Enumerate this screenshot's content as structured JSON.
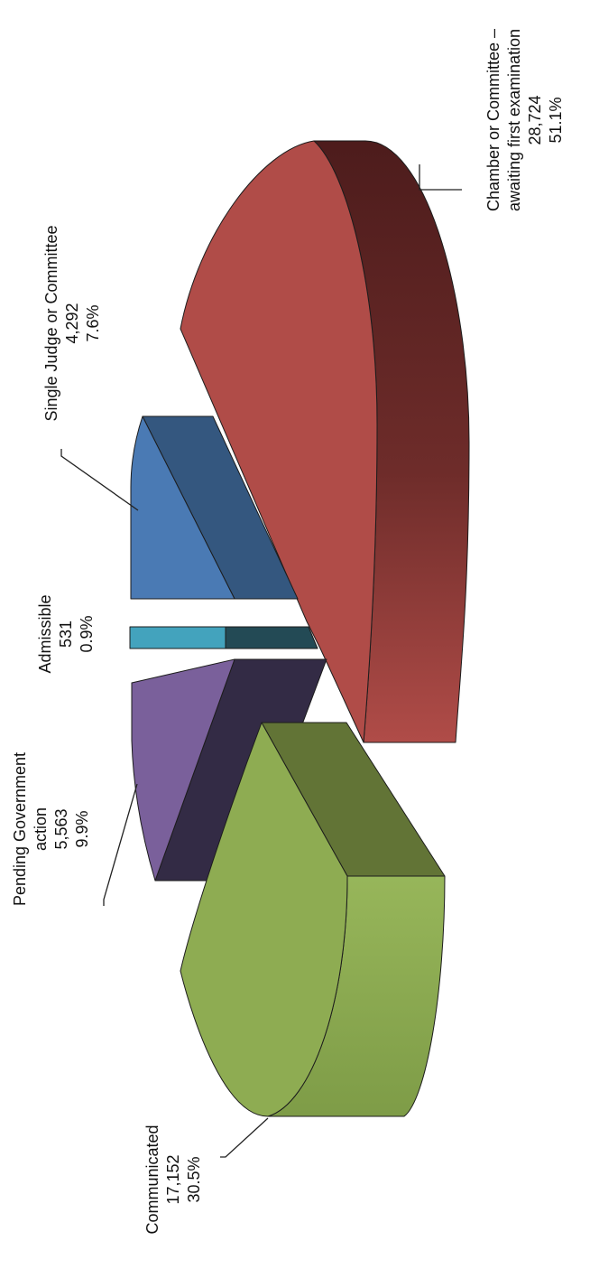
{
  "chart_data": {
    "type": "pie",
    "style": "3d-exploded",
    "orientation": "rotated-90",
    "title": "",
    "slices": [
      {
        "key": "chamber",
        "lines": [
          "Chamber or Committee –",
          "awaiting first examination",
          "28,724",
          "51.1%"
        ],
        "value": 28724,
        "percent": 51.1,
        "color": "#b04c48",
        "side_color": "#6b2624"
      },
      {
        "key": "single",
        "lines": [
          "Single Judge or Committee",
          "4,292",
          "7.6%"
        ],
        "value": 4292,
        "percent": 7.6,
        "color": "#4a7ab4",
        "side_color": "#34577f"
      },
      {
        "key": "admissible",
        "lines": [
          "Admissible",
          "531",
          "0.9%"
        ],
        "value": 531,
        "percent": 0.9,
        "color": "#43a3bd",
        "side_color": "#234a55"
      },
      {
        "key": "pending",
        "lines": [
          "Pending Government",
          "action",
          "5,563",
          "9.9%"
        ],
        "value": 5563,
        "percent": 9.9,
        "color": "#7a609b",
        "side_color": "#332b45"
      },
      {
        "key": "communicated",
        "lines": [
          "Communicated",
          "17,152",
          "30.5%"
        ],
        "value": 17152,
        "percent": 30.5,
        "color": "#8eac52",
        "side_color": "#627436"
      }
    ]
  }
}
